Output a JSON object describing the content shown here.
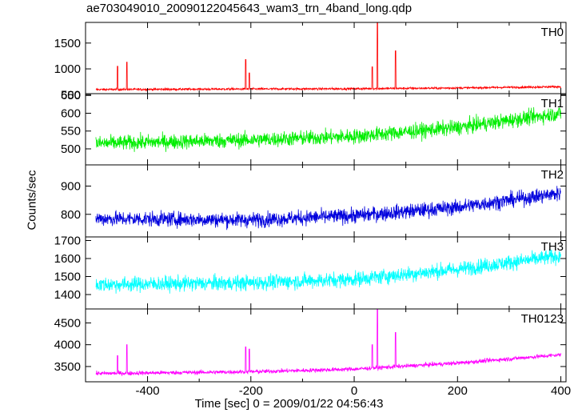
{
  "title": "ae703049010_20090122045643_wam3_trn_4band_long.qdp",
  "chart_data": {
    "type": "line",
    "title": "ae703049010_20090122045643_wam3_trn_4band_long.qdp",
    "xlabel": "Time [sec] 0 = 2009/01/22 04:56:43",
    "ylabel": "Counts/sec",
    "xlim": [
      -520,
      410
    ],
    "xticks": [
      -400,
      -200,
      0,
      200,
      400
    ],
    "panels": [
      {
        "name": "TH0",
        "color": "#ff0000",
        "ylim": [
          520,
          1900
        ],
        "yticks": [
          500,
          1000,
          1500
        ],
        "baseline": [
          [
            -500,
            600
          ],
          [
            -200,
            610
          ],
          [
            0,
            615
          ],
          [
            200,
            630
          ],
          [
            400,
            655
          ]
        ],
        "noise": 20,
        "spikes": [
          [
            -458,
            1050
          ],
          [
            -440,
            1130
          ],
          [
            -210,
            1180
          ],
          [
            -203,
            920
          ],
          [
            35,
            1040
          ],
          [
            45,
            1900
          ],
          [
            80,
            1350
          ]
        ]
      },
      {
        "name": "TH1",
        "color": "#00ee00",
        "ylim": [
          455,
          655
        ],
        "yticks": [
          500,
          550,
          600,
          650
        ],
        "baseline": [
          [
            -500,
            515
          ],
          [
            -200,
            525
          ],
          [
            0,
            535
          ],
          [
            200,
            560
          ],
          [
            400,
            600
          ]
        ],
        "noise": 20,
        "spikes": []
      },
      {
        "name": "TH2",
        "color": "#0000dd",
        "ylim": [
          720,
          975
        ],
        "yticks": [
          800,
          900
        ],
        "baseline": [
          [
            -500,
            785
          ],
          [
            -200,
            780
          ],
          [
            0,
            795
          ],
          [
            200,
            825
          ],
          [
            400,
            875
          ]
        ],
        "noise": 25,
        "spikes": []
      },
      {
        "name": "TH3",
        "color": "#00ffff",
        "ylim": [
          1320,
          1720
        ],
        "yticks": [
          1400,
          1500,
          1600,
          1700
        ],
        "baseline": [
          [
            -500,
            1455
          ],
          [
            -200,
            1465
          ],
          [
            0,
            1485
          ],
          [
            200,
            1540
          ],
          [
            400,
            1615
          ]
        ],
        "noise": 40,
        "spikes": []
      },
      {
        "name": "TH0123",
        "color": "#ff00ff",
        "ylim": [
          3150,
          4820
        ],
        "yticks": [
          3500,
          4000,
          4500
        ],
        "baseline": [
          [
            -500,
            3340
          ],
          [
            -200,
            3380
          ],
          [
            0,
            3440
          ],
          [
            200,
            3580
          ],
          [
            400,
            3770
          ]
        ],
        "noise": 45,
        "spikes": [
          [
            -458,
            3750
          ],
          [
            -440,
            4000
          ],
          [
            -210,
            3950
          ],
          [
            -203,
            3900
          ],
          [
            35,
            4000
          ],
          [
            45,
            4820
          ],
          [
            80,
            4280
          ]
        ]
      }
    ]
  }
}
